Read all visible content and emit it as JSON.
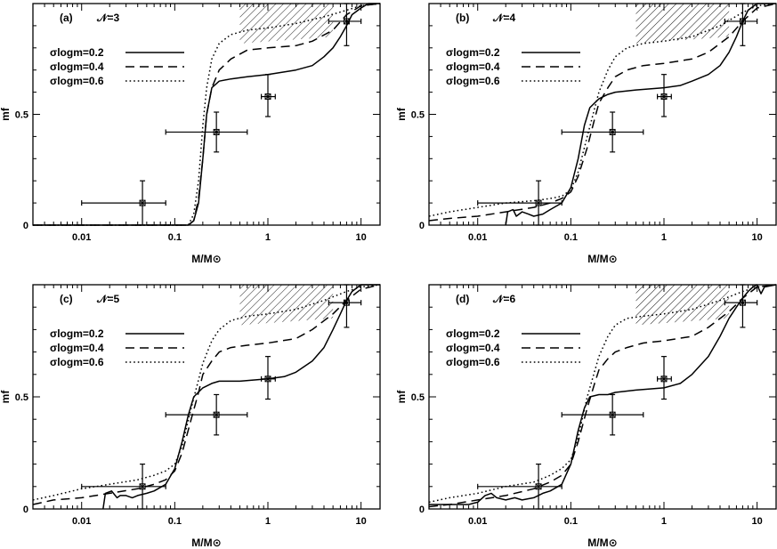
{
  "figure": {
    "colors": {
      "ink": "#000000",
      "background": "#ffffff"
    }
  },
  "chart_data": [
    {
      "type": "line",
      "panel_label": "(a)",
      "n_label": "𝒩=3",
      "xlabel": "M/M⊙",
      "ylabel": "mf",
      "xscale": "log",
      "xlim": [
        0.003,
        16
      ],
      "ylim": [
        0,
        1
      ],
      "x_ticks": [
        "0.01",
        "0.1",
        "1",
        "10"
      ],
      "y_ticks": [
        "0",
        "0.5"
      ],
      "legend": {
        "placement": "top-left",
        "entries": [
          "σlogm=0.2",
          "σlogm=0.4",
          "σlogm=0.6"
        ]
      },
      "hatched_region": {
        "x": [
          0.5,
          5.0
        ],
        "y_lower": [
          0.82,
          0.85
        ],
        "y_upper": [
          1.0,
          1.0
        ]
      },
      "observations": [
        {
          "x": 0.045,
          "y": 0.1,
          "xerr": [
            0.01,
            0.08
          ],
          "yerr": [
            0.0,
            0.2
          ]
        },
        {
          "x": 0.28,
          "y": 0.42,
          "xerr": [
            0.08,
            0.6
          ],
          "yerr": [
            0.33,
            0.51
          ]
        },
        {
          "x": 1.0,
          "y": 0.58,
          "xerr": [
            0.85,
            1.2
          ],
          "yerr": [
            0.49,
            0.68
          ]
        },
        {
          "x": 7.0,
          "y": 0.92,
          "xerr": [
            4.5,
            10.0
          ],
          "yerr": [
            0.81,
            1.0
          ]
        }
      ],
      "series": [
        {
          "name": "σlogm=0.2",
          "dash": "solid",
          "x": [
            0.003,
            0.14,
            0.16,
            0.18,
            0.2,
            0.22,
            0.25,
            0.3,
            0.4,
            0.6,
            1.0,
            2.0,
            3.0,
            4.0,
            5.0,
            6.0,
            7.0,
            8.0,
            10.0,
            12.0,
            16.0
          ],
          "y": [
            0.0,
            0.0,
            0.02,
            0.1,
            0.3,
            0.5,
            0.62,
            0.65,
            0.66,
            0.67,
            0.68,
            0.7,
            0.72,
            0.76,
            0.8,
            0.85,
            0.9,
            0.95,
            0.98,
            1.0,
            1.0
          ]
        },
        {
          "name": "σlogm=0.4",
          "dash": "dashed",
          "x": [
            0.003,
            0.14,
            0.16,
            0.18,
            0.2,
            0.22,
            0.25,
            0.3,
            0.4,
            0.6,
            1.0,
            2.0,
            3.0,
            5.0,
            7.0,
            10.0,
            16.0
          ],
          "y": [
            0.0,
            0.0,
            0.02,
            0.12,
            0.3,
            0.5,
            0.62,
            0.7,
            0.75,
            0.79,
            0.8,
            0.81,
            0.83,
            0.88,
            0.95,
            0.99,
            1.0
          ]
        },
        {
          "name": "σlogm=0.6",
          "dash": "dotted",
          "x": [
            0.003,
            0.14,
            0.16,
            0.18,
            0.2,
            0.22,
            0.25,
            0.3,
            0.4,
            0.6,
            1.0,
            2.0,
            4.0,
            7.0,
            10.0,
            16.0
          ],
          "y": [
            0.0,
            0.0,
            0.05,
            0.2,
            0.45,
            0.62,
            0.75,
            0.82,
            0.86,
            0.88,
            0.89,
            0.91,
            0.94,
            0.97,
            0.99,
            1.0
          ]
        }
      ]
    },
    {
      "type": "line",
      "panel_label": "(b)",
      "n_label": "𝒩=4",
      "xlabel": "M/M⊙",
      "ylabel": "mf",
      "xscale": "log",
      "xlim": [
        0.003,
        16
      ],
      "ylim": [
        0,
        1
      ],
      "x_ticks": [
        "0.01",
        "0.1",
        "1",
        "10"
      ],
      "y_ticks": [
        "0",
        "0.5"
      ],
      "legend": {
        "placement": "top-left",
        "entries": [
          "σlogm=0.2",
          "σlogm=0.4",
          "σlogm=0.6"
        ]
      },
      "hatched_region": {
        "x": [
          0.5,
          5.0
        ],
        "y_lower": [
          0.82,
          0.85
        ],
        "y_upper": [
          1.0,
          1.0
        ]
      },
      "observations": [
        {
          "x": 0.045,
          "y": 0.1,
          "xerr": [
            0.01,
            0.08
          ],
          "yerr": [
            0.0,
            0.2
          ]
        },
        {
          "x": 0.28,
          "y": 0.42,
          "xerr": [
            0.08,
            0.6
          ],
          "yerr": [
            0.33,
            0.51
          ]
        },
        {
          "x": 1.0,
          "y": 0.58,
          "xerr": [
            0.85,
            1.2
          ],
          "yerr": [
            0.49,
            0.68
          ]
        },
        {
          "x": 7.0,
          "y": 0.92,
          "xerr": [
            4.5,
            10.0
          ],
          "yerr": [
            0.81,
            1.0
          ]
        }
      ],
      "series": [
        {
          "name": "σlogm=0.2",
          "dash": "solid",
          "x": [
            0.02,
            0.021,
            0.024,
            0.026,
            0.03,
            0.035,
            0.04,
            0.05,
            0.06,
            0.08,
            0.1,
            0.12,
            0.14,
            0.16,
            0.2,
            0.25,
            0.3,
            0.5,
            1.0,
            1.5,
            2.0,
            3.0,
            4.0,
            5.0,
            6.0,
            7.0,
            8.0,
            10.0,
            12.0,
            16.0
          ],
          "y": [
            0.0,
            0.06,
            0.07,
            0.04,
            0.06,
            0.05,
            0.04,
            0.05,
            0.07,
            0.1,
            0.17,
            0.3,
            0.45,
            0.53,
            0.57,
            0.59,
            0.6,
            0.61,
            0.62,
            0.63,
            0.65,
            0.68,
            0.72,
            0.78,
            0.85,
            0.92,
            0.97,
            1.0,
            1.0,
            1.0
          ]
        },
        {
          "name": "σlogm=0.4",
          "dash": "dashed",
          "x": [
            0.003,
            0.005,
            0.01,
            0.02,
            0.04,
            0.06,
            0.08,
            0.1,
            0.12,
            0.15,
            0.18,
            0.2,
            0.25,
            0.3,
            0.4,
            0.6,
            1.0,
            2.0,
            3.0,
            5.0,
            7.0,
            10.0,
            16.0
          ],
          "y": [
            0.02,
            0.03,
            0.04,
            0.06,
            0.08,
            0.1,
            0.12,
            0.15,
            0.22,
            0.35,
            0.48,
            0.55,
            0.62,
            0.67,
            0.7,
            0.72,
            0.73,
            0.75,
            0.78,
            0.85,
            0.92,
            0.98,
            1.0
          ]
        },
        {
          "name": "σlogm=0.6",
          "dash": "dotted",
          "x": [
            0.003,
            0.005,
            0.01,
            0.02,
            0.04,
            0.06,
            0.08,
            0.1,
            0.12,
            0.15,
            0.2,
            0.25,
            0.3,
            0.4,
            0.6,
            1.0,
            2.0,
            4.0,
            7.0,
            10.0,
            16.0
          ],
          "y": [
            0.04,
            0.06,
            0.08,
            0.1,
            0.11,
            0.12,
            0.13,
            0.16,
            0.24,
            0.4,
            0.6,
            0.7,
            0.76,
            0.8,
            0.82,
            0.83,
            0.85,
            0.9,
            0.96,
            0.99,
            1.0
          ]
        }
      ]
    },
    {
      "type": "line",
      "panel_label": "(c)",
      "n_label": "𝒩=5",
      "xlabel": "M/M⊙",
      "ylabel": "mf",
      "xscale": "log",
      "xlim": [
        0.003,
        16
      ],
      "ylim": [
        0,
        1
      ],
      "x_ticks": [
        "0.01",
        "0.1",
        "1",
        "10"
      ],
      "y_ticks": [
        "0",
        "0.5"
      ],
      "legend": {
        "placement": "top-left",
        "entries": [
          "σlogm=0.2",
          "σlogm=0.4",
          "σlogm=0.6"
        ]
      },
      "hatched_region": {
        "x": [
          0.5,
          5.0
        ],
        "y_lower": [
          0.82,
          0.85
        ],
        "y_upper": [
          1.0,
          1.0
        ]
      },
      "observations": [
        {
          "x": 0.045,
          "y": 0.1,
          "xerr": [
            0.01,
            0.08
          ],
          "yerr": [
            0.0,
            0.2
          ]
        },
        {
          "x": 0.28,
          "y": 0.42,
          "xerr": [
            0.08,
            0.6
          ],
          "yerr": [
            0.33,
            0.51
          ]
        },
        {
          "x": 1.0,
          "y": 0.58,
          "xerr": [
            0.85,
            1.2
          ],
          "yerr": [
            0.49,
            0.68
          ]
        },
        {
          "x": 7.0,
          "y": 0.92,
          "xerr": [
            4.5,
            10.0
          ],
          "yerr": [
            0.81,
            1.0
          ]
        }
      ],
      "series": [
        {
          "name": "σlogm=0.2",
          "dash": "solid",
          "x": [
            0.017,
            0.018,
            0.021,
            0.024,
            0.026,
            0.03,
            0.035,
            0.04,
            0.05,
            0.06,
            0.08,
            0.1,
            0.12,
            0.14,
            0.16,
            0.2,
            0.25,
            0.3,
            0.5,
            1.0,
            1.5,
            2.0,
            3.0,
            4.0,
            5.0,
            6.0,
            7.0,
            8.0,
            10.0,
            12.0,
            16.0
          ],
          "y": [
            0.0,
            0.07,
            0.08,
            0.05,
            0.06,
            0.06,
            0.05,
            0.06,
            0.07,
            0.08,
            0.11,
            0.18,
            0.3,
            0.42,
            0.5,
            0.54,
            0.56,
            0.57,
            0.57,
            0.58,
            0.59,
            0.61,
            0.66,
            0.72,
            0.8,
            0.87,
            0.93,
            0.97,
            1.0,
            1.0,
            1.0
          ]
        },
        {
          "name": "σlogm=0.4",
          "dash": "dashed",
          "x": [
            0.003,
            0.005,
            0.01,
            0.02,
            0.04,
            0.06,
            0.08,
            0.1,
            0.12,
            0.15,
            0.18,
            0.2,
            0.25,
            0.3,
            0.4,
            0.6,
            1.0,
            2.0,
            3.0,
            5.0,
            7.0,
            10.0,
            16.0
          ],
          "y": [
            0.02,
            0.04,
            0.05,
            0.07,
            0.09,
            0.11,
            0.13,
            0.17,
            0.25,
            0.4,
            0.52,
            0.6,
            0.66,
            0.7,
            0.72,
            0.73,
            0.74,
            0.76,
            0.8,
            0.87,
            0.93,
            0.98,
            1.0
          ]
        },
        {
          "name": "σlogm=0.6",
          "dash": "dotted",
          "x": [
            0.003,
            0.005,
            0.01,
            0.02,
            0.04,
            0.06,
            0.08,
            0.1,
            0.12,
            0.15,
            0.2,
            0.25,
            0.3,
            0.4,
            0.6,
            1.0,
            2.0,
            4.0,
            7.0,
            10.0,
            16.0
          ],
          "y": [
            0.04,
            0.06,
            0.09,
            0.11,
            0.13,
            0.15,
            0.17,
            0.2,
            0.28,
            0.45,
            0.65,
            0.75,
            0.8,
            0.84,
            0.86,
            0.87,
            0.89,
            0.93,
            0.97,
            0.99,
            1.0
          ]
        }
      ]
    },
    {
      "type": "line",
      "panel_label": "(d)",
      "n_label": "𝒩=6",
      "xlabel": "M/M⊙",
      "ylabel": "mf",
      "xscale": "log",
      "xlim": [
        0.003,
        16
      ],
      "ylim": [
        0,
        1
      ],
      "x_ticks": [
        "0.01",
        "0.1",
        "1",
        "10"
      ],
      "y_ticks": [
        "0",
        "0.5"
      ],
      "legend": {
        "placement": "top-left",
        "entries": [
          "σlogm=0.2",
          "σlogm=0.4",
          "σlogm=0.6"
        ]
      },
      "hatched_region": {
        "x": [
          0.5,
          5.0
        ],
        "y_lower": [
          0.82,
          0.85
        ],
        "y_upper": [
          1.0,
          1.0
        ]
      },
      "observations": [
        {
          "x": 0.045,
          "y": 0.1,
          "xerr": [
            0.01,
            0.08
          ],
          "yerr": [
            0.0,
            0.2
          ]
        },
        {
          "x": 0.28,
          "y": 0.42,
          "xerr": [
            0.08,
            0.6
          ],
          "yerr": [
            0.33,
            0.51
          ]
        },
        {
          "x": 1.0,
          "y": 0.58,
          "xerr": [
            0.85,
            1.2
          ],
          "yerr": [
            0.49,
            0.68
          ]
        },
        {
          "x": 7.0,
          "y": 0.92,
          "xerr": [
            4.5,
            10.0
          ],
          "yerr": [
            0.81,
            1.0
          ]
        }
      ],
      "series": [
        {
          "name": "σlogm=0.2",
          "dash": "solid",
          "x": [
            0.003,
            0.005,
            0.008,
            0.01,
            0.012,
            0.014,
            0.016,
            0.02,
            0.025,
            0.03,
            0.04,
            0.05,
            0.06,
            0.08,
            0.1,
            0.12,
            0.14,
            0.16,
            0.2,
            0.25,
            0.3,
            0.5,
            1.0,
            1.5,
            2.0,
            3.0,
            4.0,
            5.0,
            6.0,
            7.0,
            8.0,
            9.0,
            10.0,
            11.0,
            12.0,
            16.0
          ],
          "y": [
            0.02,
            0.02,
            0.02,
            0.03,
            0.06,
            0.07,
            0.05,
            0.04,
            0.05,
            0.04,
            0.05,
            0.07,
            0.08,
            0.11,
            0.2,
            0.35,
            0.45,
            0.5,
            0.51,
            0.51,
            0.52,
            0.53,
            0.54,
            0.56,
            0.6,
            0.68,
            0.77,
            0.85,
            0.9,
            0.94,
            0.97,
            0.99,
            1.0,
            0.96,
            0.99,
            1.0
          ]
        },
        {
          "name": "σlogm=0.4",
          "dash": "dashed",
          "x": [
            0.003,
            0.005,
            0.01,
            0.02,
            0.04,
            0.06,
            0.08,
            0.1,
            0.12,
            0.15,
            0.18,
            0.2,
            0.25,
            0.3,
            0.4,
            0.6,
            1.0,
            2.0,
            3.0,
            5.0,
            7.0,
            10.0,
            16.0
          ],
          "y": [
            0.01,
            0.02,
            0.04,
            0.06,
            0.09,
            0.12,
            0.15,
            0.2,
            0.3,
            0.45,
            0.56,
            0.62,
            0.67,
            0.7,
            0.72,
            0.74,
            0.75,
            0.77,
            0.81,
            0.88,
            0.94,
            0.99,
            1.0
          ]
        },
        {
          "name": "σlogm=0.6",
          "dash": "dotted",
          "x": [
            0.003,
            0.005,
            0.01,
            0.02,
            0.04,
            0.06,
            0.08,
            0.1,
            0.12,
            0.15,
            0.2,
            0.25,
            0.3,
            0.4,
            0.6,
            1.0,
            2.0,
            4.0,
            7.0,
            10.0,
            16.0
          ],
          "y": [
            0.03,
            0.05,
            0.07,
            0.1,
            0.12,
            0.15,
            0.18,
            0.22,
            0.32,
            0.5,
            0.68,
            0.77,
            0.82,
            0.85,
            0.86,
            0.87,
            0.89,
            0.93,
            0.97,
            0.99,
            1.0
          ]
        }
      ]
    }
  ]
}
